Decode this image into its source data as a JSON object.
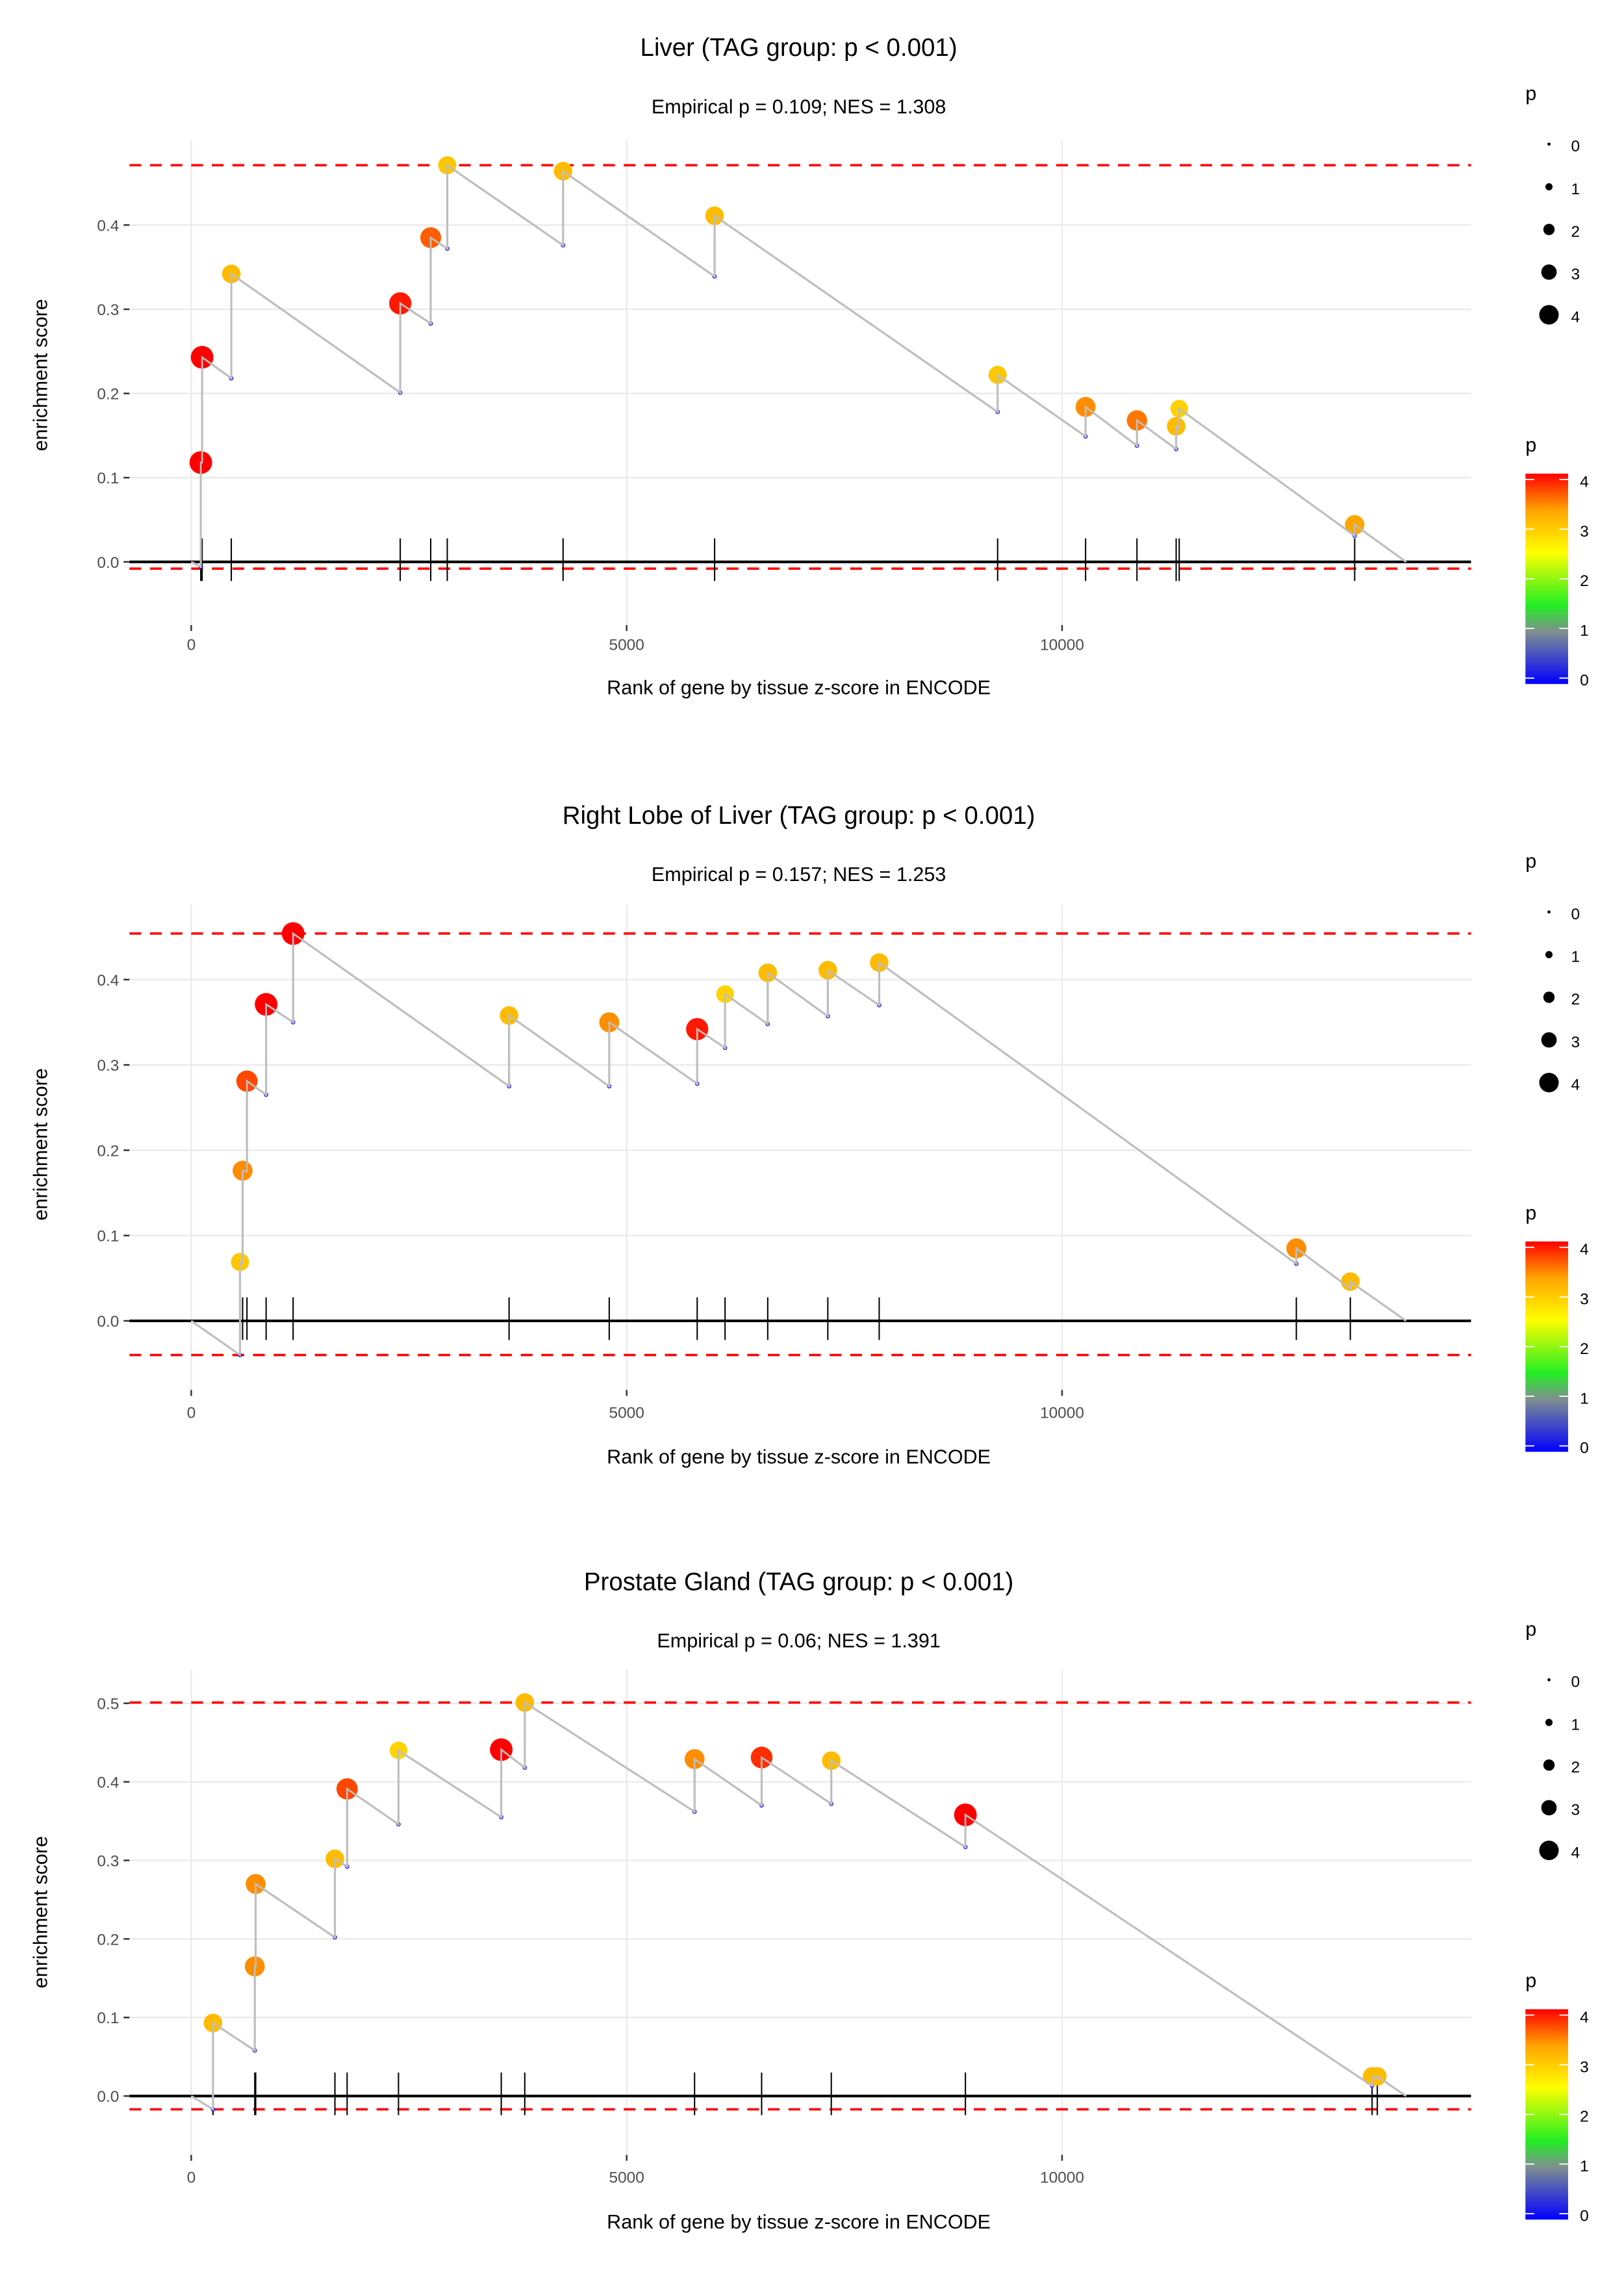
{
  "chart_data": [
    {
      "type": "scatter",
      "subtype": "gsea-running-enrichment",
      "title": "Liver (TAG group: p < 0.001)",
      "subtitle": "Empirical p = 0.109; NES = 1.308",
      "xlabel": "Rank of gene by tissue z-score in ENCODE",
      "ylabel": "enrichment score",
      "xlim": [
        -800,
        14700
      ],
      "ylim": [
        -0.02,
        0.5
      ],
      "x_ticks": [
        0,
        5000,
        10000
      ],
      "x_tick_labels": [
        "0",
        "5000",
        "10000"
      ],
      "y_ticks": [
        0.0,
        0.1,
        0.2,
        0.3,
        0.4
      ],
      "y_tick_labels": [
        "0.0",
        "0.1",
        "0.2",
        "0.3",
        "0.4"
      ],
      "grid": true,
      "max_es_line": 0.471,
      "min_es_line": -0.008,
      "end_rank": 13950,
      "hits": [
        {
          "rank": 110,
          "es_before": -0.006,
          "es": 0.118,
          "p": 4.0
        },
        {
          "rank": 125,
          "es_before": 0.118,
          "es": 0.243,
          "p": 4.0
        },
        {
          "rank": 460,
          "es_before": 0.218,
          "es": 0.342,
          "p": 3.1
        },
        {
          "rank": 2400,
          "es_before": 0.201,
          "es": 0.307,
          "p": 3.9
        },
        {
          "rank": 2750,
          "es_before": 0.283,
          "es": 0.385,
          "p": 3.6
        },
        {
          "rank": 2940,
          "es_before": 0.372,
          "es": 0.471,
          "p": 3.0
        },
        {
          "rank": 4270,
          "es_before": 0.376,
          "es": 0.464,
          "p": 3.1
        },
        {
          "rank": 6010,
          "es_before": 0.339,
          "es": 0.411,
          "p": 3.1
        },
        {
          "rank": 9260,
          "es_before": 0.178,
          "es": 0.222,
          "p": 3.0
        },
        {
          "rank": 10270,
          "es_before": 0.149,
          "es": 0.184,
          "p": 3.4
        },
        {
          "rank": 10860,
          "es_before": 0.138,
          "es": 0.168,
          "p": 3.5
        },
        {
          "rank": 11310,
          "es_before": 0.134,
          "es": 0.161,
          "p": 3.1
        },
        {
          "rank": 11345,
          "es_before": 0.158,
          "es": 0.182,
          "p": 2.9
        },
        {
          "rank": 13360,
          "es_before": 0.031,
          "es": 0.044,
          "p": 3.3
        }
      ]
    },
    {
      "type": "scatter",
      "subtype": "gsea-running-enrichment",
      "title": "Right Lobe of Liver (TAG group: p < 0.001)",
      "subtitle": "Empirical p = 0.157; NES = 1.253",
      "xlabel": "Rank of gene by tissue z-score in ENCODE",
      "ylabel": "enrichment score",
      "xlim": [
        -800,
        14700
      ],
      "ylim": [
        -0.05,
        0.48
      ],
      "x_ticks": [
        0,
        5000,
        10000
      ],
      "x_tick_labels": [
        "0",
        "5000",
        "10000"
      ],
      "y_ticks": [
        0.0,
        0.1,
        0.2,
        0.3,
        0.4
      ],
      "y_tick_labels": [
        "0.0",
        "0.1",
        "0.2",
        "0.3",
        "0.4"
      ],
      "grid": true,
      "max_es_line": 0.454,
      "min_es_line": -0.04,
      "end_rank": 13950,
      "hits": [
        {
          "rank": 560,
          "es_before": -0.04,
          "es": 0.069,
          "p": 3.0
        },
        {
          "rank": 590,
          "es_before": 0.068,
          "es": 0.176,
          "p": 3.4
        },
        {
          "rank": 640,
          "es_before": 0.175,
          "es": 0.281,
          "p": 3.7
        },
        {
          "rank": 860,
          "es_before": 0.265,
          "es": 0.371,
          "p": 4.0
        },
        {
          "rank": 1170,
          "es_before": 0.35,
          "es": 0.454,
          "p": 4.0
        },
        {
          "rank": 3650,
          "es_before": 0.275,
          "es": 0.358,
          "p": 3.1
        },
        {
          "rank": 4800,
          "es_before": 0.275,
          "es": 0.35,
          "p": 3.4
        },
        {
          "rank": 5810,
          "es_before": 0.278,
          "es": 0.342,
          "p": 3.9
        },
        {
          "rank": 6130,
          "es_before": 0.32,
          "es": 0.383,
          "p": 2.9
        },
        {
          "rank": 6620,
          "es_before": 0.348,
          "es": 0.408,
          "p": 3.1
        },
        {
          "rank": 7310,
          "es_before": 0.357,
          "es": 0.411,
          "p": 3.1
        },
        {
          "rank": 7900,
          "es_before": 0.37,
          "es": 0.42,
          "p": 3.1
        },
        {
          "rank": 12690,
          "es_before": 0.067,
          "es": 0.085,
          "p": 3.4
        },
        {
          "rank": 13310,
          "es_before": 0.038,
          "es": 0.046,
          "p": 3.1
        }
      ]
    },
    {
      "type": "scatter",
      "subtype": "gsea-running-enrichment",
      "title": "Prostate Gland (TAG group: p < 0.001)",
      "subtitle": "Empirical p = 0.06; NES = 1.391",
      "xlabel": "Rank of gene by tissue z-score in ENCODE",
      "ylabel": "enrichment score",
      "xlim": [
        -800,
        14700
      ],
      "ylim": [
        -0.03,
        0.53
      ],
      "x_ticks": [
        0,
        5000,
        10000
      ],
      "x_tick_labels": [
        "0",
        "5000",
        "10000"
      ],
      "y_ticks": [
        0.0,
        0.1,
        0.2,
        0.3,
        0.4,
        0.5
      ],
      "y_tick_labels": [
        "0.0",
        "0.1",
        "0.2",
        "0.3",
        "0.4",
        "0.5"
      ],
      "grid": true,
      "max_es_line": 0.501,
      "min_es_line": -0.017,
      "end_rank": 13950,
      "hits": [
        {
          "rank": 250,
          "es_before": -0.017,
          "es": 0.093,
          "p": 3.1
        },
        {
          "rank": 730,
          "es_before": 0.058,
          "es": 0.165,
          "p": 3.4
        },
        {
          "rank": 740,
          "es_before": 0.165,
          "es": 0.27,
          "p": 3.4
        },
        {
          "rank": 1650,
          "es_before": 0.202,
          "es": 0.302,
          "p": 3.1
        },
        {
          "rank": 1790,
          "es_before": 0.292,
          "es": 0.391,
          "p": 3.7
        },
        {
          "rank": 2380,
          "es_before": 0.346,
          "es": 0.44,
          "p": 2.9
        },
        {
          "rank": 3560,
          "es_before": 0.355,
          "es": 0.441,
          "p": 4.0
        },
        {
          "rank": 3830,
          "es_before": 0.418,
          "es": 0.501,
          "p": 3.1
        },
        {
          "rank": 5780,
          "es_before": 0.362,
          "es": 0.429,
          "p": 3.4
        },
        {
          "rank": 6550,
          "es_before": 0.37,
          "es": 0.431,
          "p": 3.8
        },
        {
          "rank": 7350,
          "es_before": 0.372,
          "es": 0.427,
          "p": 3.1
        },
        {
          "rank": 8890,
          "es_before": 0.317,
          "es": 0.358,
          "p": 4.0
        },
        {
          "rank": 13560,
          "es_before": 0.013,
          "es": 0.025,
          "p": 3.1
        },
        {
          "rank": 13620,
          "es_before": 0.022,
          "es": 0.025,
          "p": 3.1
        }
      ]
    }
  ],
  "legends": {
    "size_title": "p",
    "size_labels": [
      "0",
      "1",
      "2",
      "3",
      "4"
    ],
    "color_title": "p",
    "color_labels": [
      "4",
      "3",
      "2",
      "1",
      "0"
    ],
    "color_scale": [
      {
        "value": 0,
        "color": "#0000ff"
      },
      {
        "value": 1,
        "color": "#7f8f8f"
      },
      {
        "value": 1.5,
        "color": "#22ee22"
      },
      {
        "value": 2.5,
        "color": "#ffff00"
      },
      {
        "value": 3.3,
        "color": "#ffa500"
      },
      {
        "value": 4,
        "color": "#ff0000"
      }
    ]
  },
  "colors": {
    "threshold_line": "#ff0000",
    "running_line": "#bebebe",
    "baseline": "#000000",
    "grid": "#ebebeb"
  }
}
